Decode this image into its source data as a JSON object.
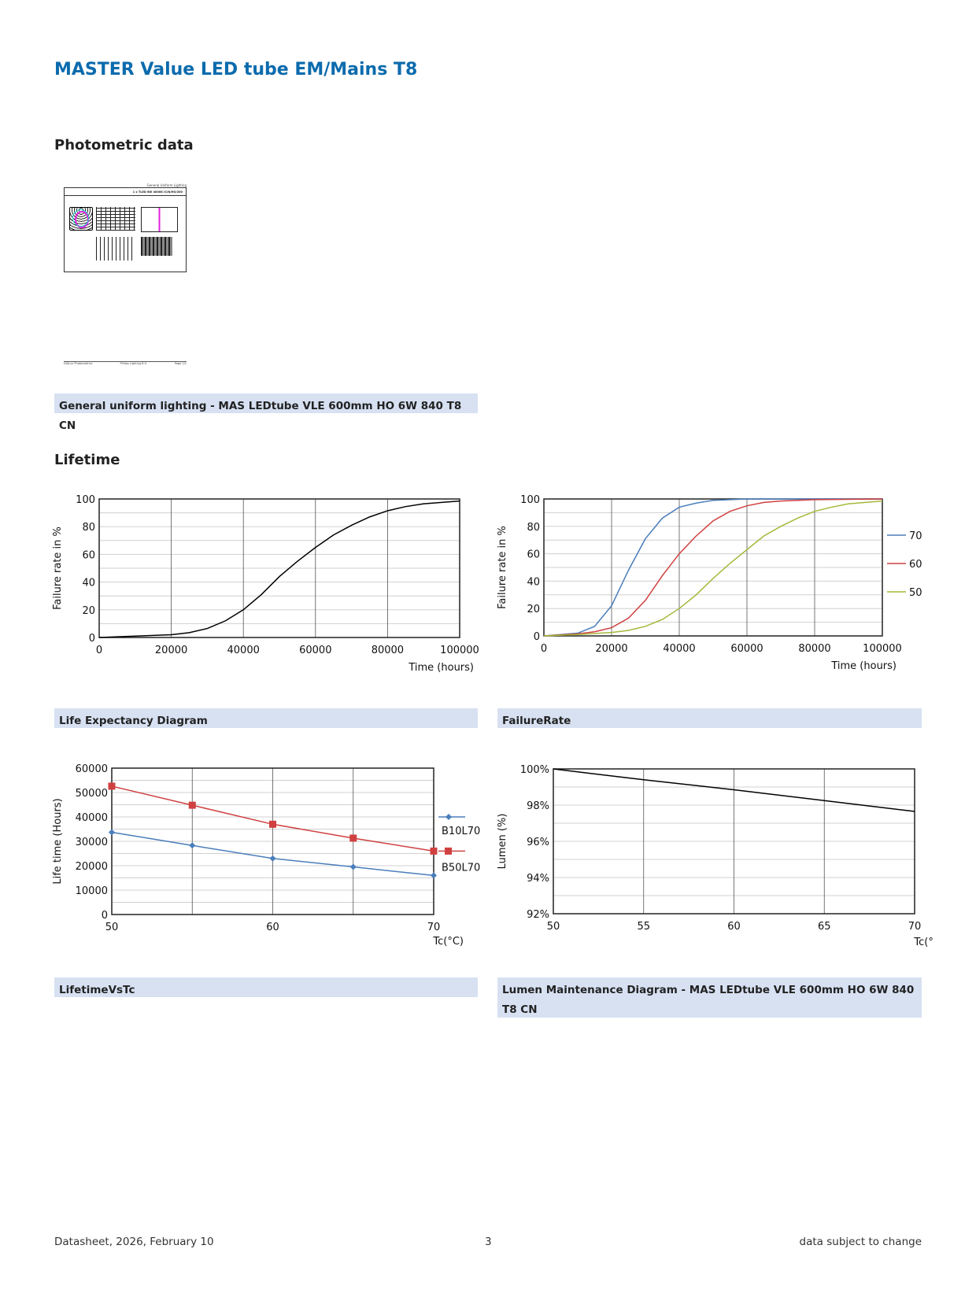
{
  "title": "MASTER Value LED tube EM/Mains T8",
  "sections": {
    "photometric": "Photometric data",
    "lifetime": "Lifetime"
  },
  "thumbnail": {
    "header": "General Uniform Lighting",
    "subheader": "1 x TLED 6W 4000K IC/N/HO/200",
    "footer_left": "DIALux Photometrics",
    "footer_mid": "Philips Lighting B.V.",
    "footer_right": "Page 1/1"
  },
  "captions": {
    "photometric": "General uniform lighting - MAS LEDtube VLE 600mm HO 6W 840 T8 CN",
    "life_expectancy": "Life Expectancy Diagram",
    "failure_rate": "FailureRate",
    "lifetime_vs_tc": "LifetimeVsTc",
    "lumen_maintenance": "Lumen Maintenance Diagram - MAS LEDtube VLE 600mm HO 6W 840 T8 CN"
  },
  "footer": {
    "left": "Datasheet, 2026, February 10",
    "page": "3",
    "right": "data subject to change"
  },
  "chart_data": [
    {
      "id": "life",
      "type": "line",
      "title": "",
      "xlabel": "Time (hours)",
      "ylabel": "Failure rate in %",
      "xlim": [
        0,
        100000
      ],
      "ylim": [
        0,
        100
      ],
      "xticks": [
        0,
        20000,
        40000,
        60000,
        80000,
        100000
      ],
      "yticks": [
        0,
        20,
        40,
        60,
        80,
        100
      ],
      "series": [
        {
          "name": "",
          "color": "#000000",
          "x": [
            0,
            5000,
            10000,
            15000,
            20000,
            25000,
            30000,
            35000,
            40000,
            45000,
            50000,
            55000,
            60000,
            65000,
            70000,
            75000,
            80000,
            85000,
            90000,
            95000,
            100000
          ],
          "y": [
            0,
            0.5,
            1,
            1.5,
            2,
            3.5,
            6.5,
            12,
            20,
            31,
            44,
            55,
            65,
            74,
            81,
            87,
            91.5,
            94.5,
            96.5,
            97.5,
            98.5
          ]
        }
      ]
    },
    {
      "id": "fail",
      "type": "line",
      "title": "",
      "xlabel": "Time (hours)",
      "ylabel": "Failure rate in %",
      "xlim": [
        0,
        100000
      ],
      "ylim": [
        0,
        100
      ],
      "legend": "right",
      "xticks": [
        0,
        20000,
        40000,
        60000,
        80000,
        100000
      ],
      "yticks": [
        0,
        20,
        40,
        60,
        80,
        100
      ],
      "series": [
        {
          "name": "70",
          "color": "#4a7ebb",
          "x": [
            0,
            5000,
            10000,
            15000,
            20000,
            25000,
            30000,
            35000,
            40000,
            45000,
            50000,
            60000,
            100000
          ],
          "y": [
            0,
            1,
            2,
            7,
            22,
            48,
            71,
            86,
            94,
            97,
            99,
            100,
            100
          ]
        },
        {
          "name": "60",
          "color": "#d04040",
          "x": [
            0,
            10000,
            15000,
            20000,
            25000,
            30000,
            35000,
            40000,
            45000,
            50000,
            55000,
            60000,
            65000,
            70000,
            80000,
            100000
          ],
          "y": [
            0,
            1.5,
            3,
            6,
            13,
            26,
            44,
            60,
            73,
            84,
            91,
            95,
            97.5,
            98.5,
            99.5,
            100
          ]
        },
        {
          "name": "50",
          "color": "#a5b83a",
          "x": [
            0,
            10000,
            20000,
            25000,
            30000,
            35000,
            40000,
            45000,
            50000,
            55000,
            60000,
            65000,
            70000,
            75000,
            80000,
            85000,
            90000,
            95000,
            100000
          ],
          "y": [
            0,
            1,
            2.5,
            4,
            7,
            12,
            20,
            30,
            42,
            53,
            63,
            73,
            80,
            86,
            91,
            94,
            96.5,
            97.5,
            98.5
          ]
        }
      ]
    },
    {
      "id": "lvt",
      "type": "line",
      "title": "",
      "xlabel": "Tc(°C)",
      "ylabel": "Life time (Hours)",
      "xlim": [
        50,
        70
      ],
      "ylim": [
        0,
        60000
      ],
      "legend": "right",
      "xticks": [
        50,
        60,
        70
      ],
      "xgrid": [
        55,
        60,
        65
      ],
      "yticks": [
        0,
        10000,
        20000,
        30000,
        40000,
        50000,
        60000
      ],
      "series": [
        {
          "name": "B10L70",
          "color": "#4a7ebb",
          "marker": "diamond",
          "x": [
            50,
            55,
            60,
            65,
            70
          ],
          "y": [
            33700,
            28300,
            23000,
            19500,
            16000
          ]
        },
        {
          "name": "B50L70",
          "color": "#d04040",
          "marker": "square",
          "x": [
            50,
            55,
            60,
            65,
            70
          ],
          "y": [
            52600,
            44800,
            37000,
            31300,
            26000
          ]
        }
      ]
    },
    {
      "id": "lumen",
      "type": "line",
      "title": "",
      "xlabel": "Tc(°C)",
      "ylabel": "Lumen (%)",
      "xlim": [
        50,
        70
      ],
      "ylim": [
        92,
        100
      ],
      "xticks": [
        50,
        55,
        60,
        65,
        70
      ],
      "yticks": [
        92,
        94,
        96,
        98,
        100
      ],
      "ytick_suffix": "%",
      "series": [
        {
          "name": "",
          "color": "#000000",
          "x": [
            50,
            55,
            60,
            65,
            70
          ],
          "y": [
            100,
            99.4,
            98.85,
            98.25,
            97.65
          ]
        }
      ]
    }
  ]
}
